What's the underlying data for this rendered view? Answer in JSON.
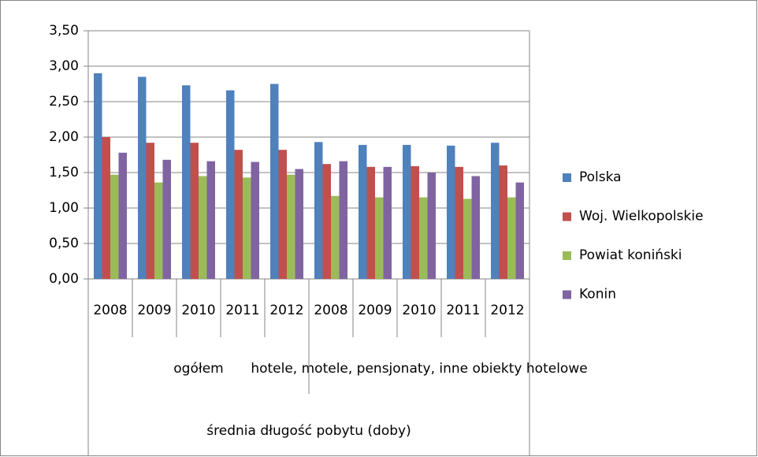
{
  "chart_data": {
    "type": "bar",
    "categories": [
      "2008",
      "2009",
      "2010",
      "2011",
      "2012",
      "2008",
      "2009",
      "2010",
      "2011",
      "2012"
    ],
    "category_groups": [
      "ogółem",
      "hotele, motele, pensjonaty, inne obiekty hotelowe"
    ],
    "category_supergroup": "średnia długość pobytu (doby)",
    "series": [
      {
        "name": "Polska",
        "color": "#4f81bd",
        "values": [
          2.9,
          2.85,
          2.73,
          2.66,
          2.75,
          1.93,
          1.89,
          1.89,
          1.88,
          1.92
        ]
      },
      {
        "name": "Woj. Wielkopolskie",
        "color": "#c0504d",
        "values": [
          2.0,
          1.92,
          1.92,
          1.82,
          1.82,
          1.62,
          1.58,
          1.59,
          1.58,
          1.6
        ]
      },
      {
        "name": "Powiat koniński",
        "color": "#9bbb59",
        "values": [
          1.47,
          1.36,
          1.45,
          1.43,
          1.47,
          1.17,
          1.15,
          1.15,
          1.13,
          1.15
        ]
      },
      {
        "name": "Konin",
        "color": "#8064a2",
        "values": [
          1.78,
          1.68,
          1.66,
          1.65,
          1.55,
          1.66,
          1.58,
          1.5,
          1.45,
          1.36
        ]
      }
    ],
    "ylim": [
      0,
      3.5
    ],
    "yticks": [
      {
        "value": 0,
        "label": "0,00"
      },
      {
        "value": 0.5,
        "label": "0,50"
      },
      {
        "value": 1,
        "label": "1,00"
      },
      {
        "value": 1.5,
        "label": "1,50"
      },
      {
        "value": 2,
        "label": "2,00"
      },
      {
        "value": 2.5,
        "label": "2,50"
      },
      {
        "value": 3,
        "label": "3,00"
      },
      {
        "value": 3.5,
        "label": "3,50"
      }
    ],
    "grid": true,
    "legend": "right"
  }
}
